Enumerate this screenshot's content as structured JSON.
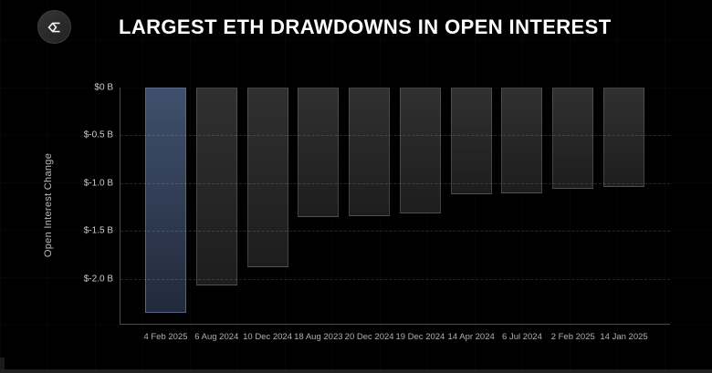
{
  "header": {
    "title": "LARGEST ETH DRAWDOWNS IN OPEN INTEREST",
    "logo_icon": "sigma-diamond-logo"
  },
  "chart_data": {
    "type": "bar",
    "title": "LARGEST ETH DRAWDOWNS IN OPEN INTEREST",
    "xlabel": "",
    "ylabel": "Open Interest Change",
    "unit": "billions USD",
    "categories": [
      "4 Feb 2025",
      "6 Aug 2024",
      "10 Dec 2024",
      "18 Aug 2023",
      "20 Dec 2024",
      "19 Dec 2024",
      "14 Apr 2024",
      "6 Jul 2024",
      "2 Feb 2025",
      "14 Jan 2025"
    ],
    "values": [
      -2.36,
      -2.07,
      -1.88,
      -1.35,
      -1.34,
      -1.32,
      -1.12,
      -1.11,
      -1.06,
      -1.04
    ],
    "ytick_values": [
      0,
      -0.5,
      -1.0,
      -1.5,
      -2.0
    ],
    "ytick_labels": [
      "$0 B",
      "$-0.5 B",
      "$-1.0 B",
      "$-1.5 B",
      "$-2.0 B"
    ],
    "ylim": [
      -2.47,
      0
    ],
    "grid": "horizontal-dashed",
    "legend": "none",
    "highlight_index": 0,
    "colors": {
      "background": "#000000",
      "bar_default_top": "#303030",
      "bar_default_bottom": "#1d1d1d",
      "bar_default_border": "#454545",
      "bar_highlight_top": "#40506c",
      "bar_highlight_bottom": "#212a3c",
      "bar_highlight_border": "#54668a",
      "axis_line": "#4a4a4a",
      "tick_text": "#cccccc",
      "title_text": "#ffffff"
    }
  }
}
